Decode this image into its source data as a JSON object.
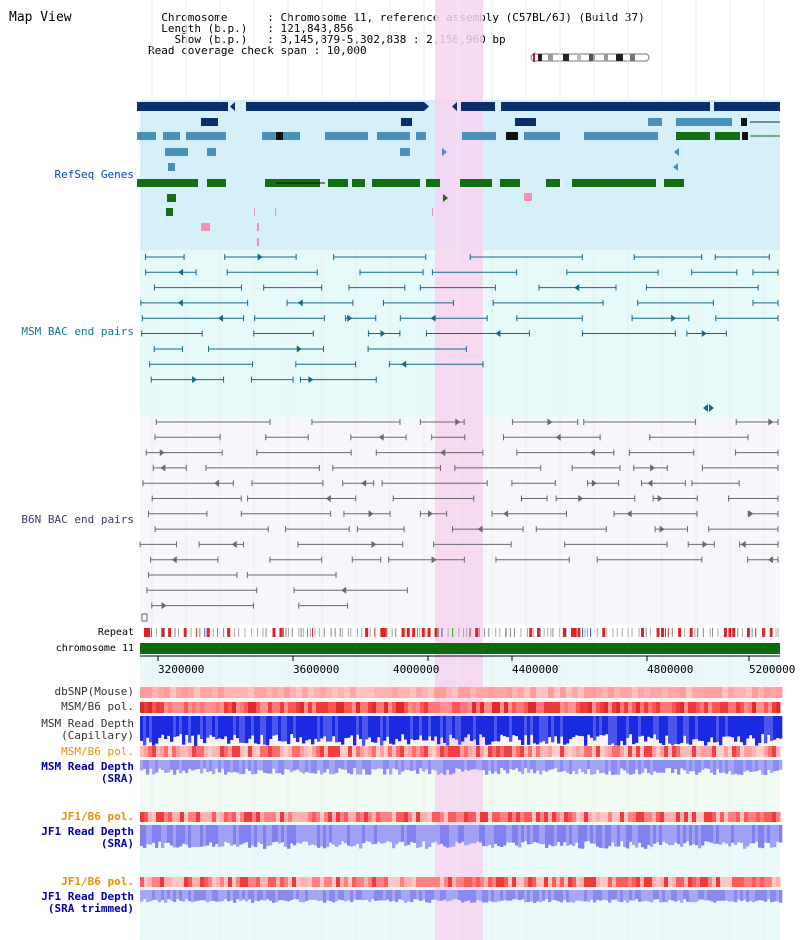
{
  "view_title": "Map View",
  "header": {
    "rows": [
      {
        "key": "Chromosome",
        "value": "Chromosome 11, reference assembly (C57BL/6J) (Build 37)"
      },
      {
        "key": "Length (b.p.)",
        "value": "121,843,856"
      },
      {
        "key": "Show (b.p.)",
        "value": "3,145,879-5,302,838 : 2,156,960 bp"
      },
      {
        "key": "Read coverage check span",
        "value": "10,000"
      }
    ]
  },
  "tracks": {
    "refseq": "RefSeq Genes",
    "msm_bac": "MSM BAC end pairs",
    "b6n_bac": "B6N BAC end pairs",
    "repeat": "Repeat",
    "chromosome": "chromosome 11",
    "dbsnp": "dbSNP(Mouse)",
    "msm_b6_pol_1": "MSM/B6 pol.",
    "msm_read_depth_cap_1": "MSM Read Depth",
    "msm_read_depth_cap_2": "(Capillary)",
    "msm_b6_pol_2": "MSM/B6 pol.",
    "msm_read_depth_sra_1": "MSM Read Depth",
    "msm_read_depth_sra_2": "(SRA)",
    "jf1_b6_pol_1": "JF1/B6 pol.",
    "jf1_read_depth_sra_1": "JF1 Read Depth",
    "jf1_read_depth_sra_2": "(SRA)",
    "jf1_b6_pol_2": "JF1/B6 pol.",
    "jf1_read_depth_trim_1": "JF1 Read Depth",
    "jf1_read_depth_trim_2": "(SRA trimmed)"
  },
  "axis": {
    "ticks": [
      "3200000",
      "3600000",
      "4000000",
      "4400000",
      "4800000",
      "5200000"
    ]
  },
  "colors": {
    "refseq_bg": "#d6f0fa",
    "msm_bg": "#e6fafa",
    "b6n_bg": "#f6f6fb",
    "highlight": "#f7d3f0",
    "gene_navy": "#0a2f6b",
    "gene_teal": "#4a90b8",
    "gene_green": "#146e14",
    "bac_msm": "#16688a",
    "bac_b6n": "#6a6a6a",
    "label_blue": "#0044cc",
    "label_teal": "#117788",
    "label_orange": "#e89000",
    "label_navy": "#0000aa",
    "chromosome_bar": "#0a6b0a",
    "snp_pink": "#ff9a9a",
    "pol_red": "#ee2a2a",
    "depth_blue": "#2030dd",
    "depth_light": "#8c8cf2"
  }
}
